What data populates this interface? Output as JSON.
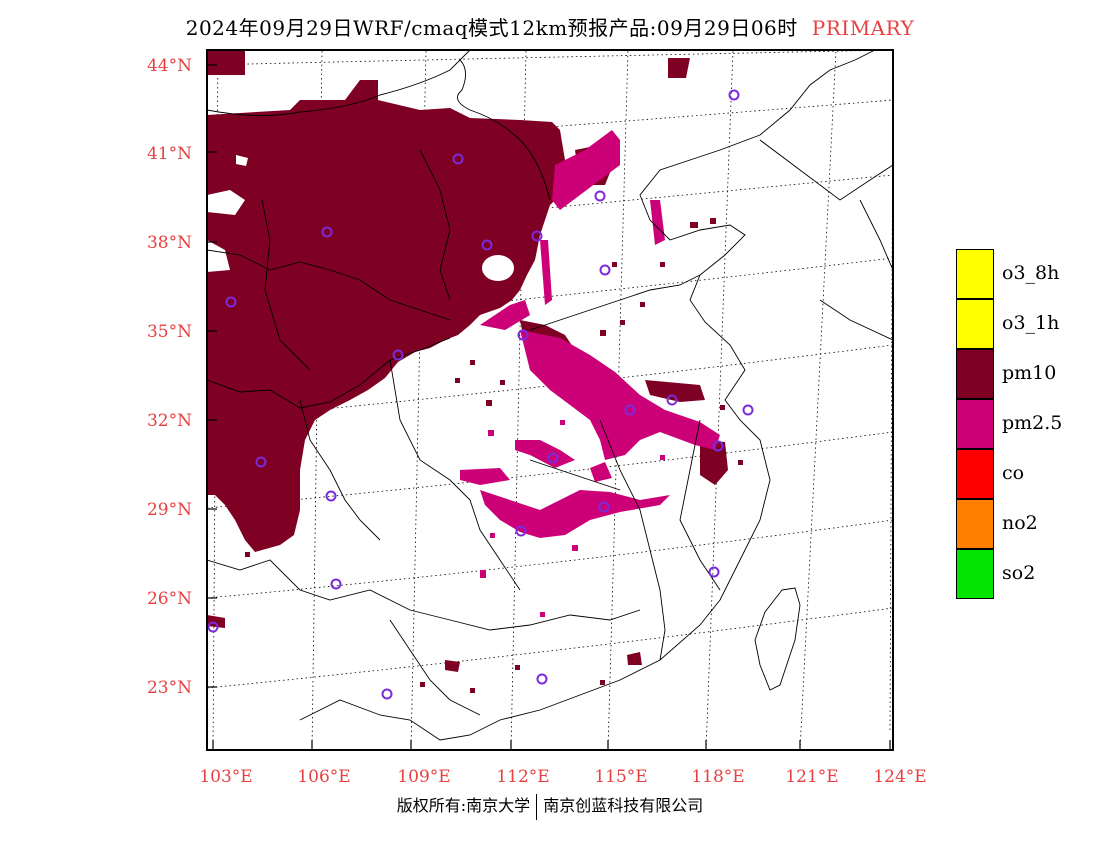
{
  "title": {
    "text": "2024年09月29日WRF/cmaq模式12km预报产品:09月29日06时",
    "tag": "PRIMARY"
  },
  "axes": {
    "lat_labels": [
      "44°N",
      "41°N",
      "38°N",
      "35°N",
      "32°N",
      "29°N",
      "26°N",
      "23°N"
    ],
    "lon_labels": [
      "103°E",
      "106°E",
      "109°E",
      "112°E",
      "115°E",
      "118°E",
      "121°E",
      "124°E"
    ],
    "label_color": "#e84040"
  },
  "legend": [
    {
      "label": "o3_8h",
      "color": "#ffff00"
    },
    {
      "label": "o3_1h",
      "color": "#ffff00"
    },
    {
      "label": "pm10",
      "color": "#7e0023"
    },
    {
      "label": "pm2.5",
      "color": "#cc0077"
    },
    {
      "label": "co",
      "color": "#ff0000"
    },
    {
      "label": "no2",
      "color": "#ff7e00"
    },
    {
      "label": "so2",
      "color": "#00e400"
    }
  ],
  "colors": {
    "pm10": "#7e0023",
    "pm25": "#cc0077",
    "station": "#7a2bdc",
    "boundary": "#000000"
  },
  "footer": {
    "left": "版权所有:南京大学",
    "right": "南京创蓝科技有限公司"
  }
}
